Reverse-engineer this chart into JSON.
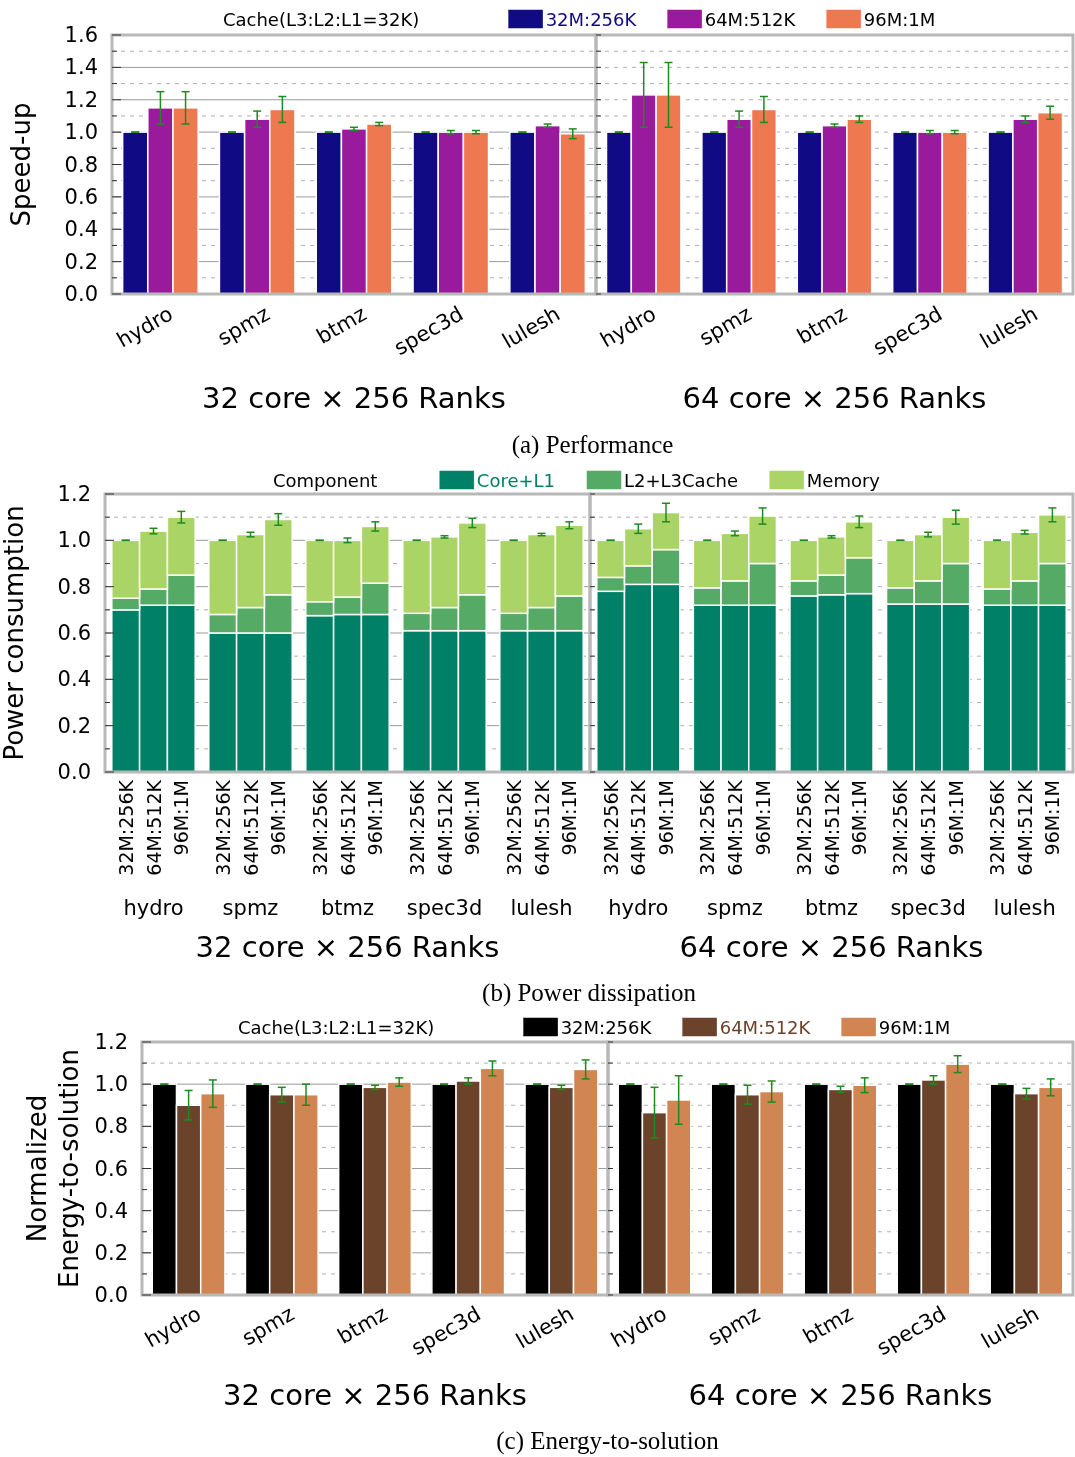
{
  "chart_data": [
    {
      "type": "bar",
      "title": "(a) Performance",
      "ylabel": "Speed-up",
      "xlabel": "32 core × 256 Ranks",
      "legend_title": "Cache(L3:L2:L1=32K)",
      "legend": "top",
      "grid": "y",
      "categories": [
        "hydro",
        "spmz",
        "btmz",
        "spec3d",
        "lulesh"
      ],
      "ylim": [
        0,
        1.6
      ],
      "yticks": [
        {
          "value": 0,
          "label": "0.0"
        },
        {
          "value": 0.1,
          "label": null
        },
        {
          "value": 0.2,
          "label": "0.2"
        },
        {
          "value": 0.3,
          "label": null
        },
        {
          "value": 0.4,
          "label": "0.4"
        },
        {
          "value": 0.5,
          "label": null
        },
        {
          "value": 0.6,
          "label": "0.6"
        },
        {
          "value": 0.7,
          "label": null
        },
        {
          "value": 0.8,
          "label": "0.8"
        },
        {
          "value": 0.9,
          "label": null
        },
        {
          "value": 1,
          "label": "1.0"
        },
        {
          "value": 1.1,
          "label": null
        },
        {
          "value": 1.2,
          "label": "1.2"
        },
        {
          "value": 1.3,
          "label": null
        },
        {
          "value": 1.4,
          "label": "1.4"
        },
        {
          "value": 1.5,
          "label": null
        },
        {
          "value": 1.6,
          "label": "1.6"
        }
      ],
      "series": [
        {
          "name": "32M:256K",
          "color": "#100a84",
          "values": [
            1,
            1,
            1,
            1,
            1
          ],
          "errors": [
            0,
            0,
            0,
            0,
            0
          ]
        },
        {
          "name": "64M:512K",
          "color": "#9a1a9e",
          "values": [
            1.15,
            1.08,
            1.02,
            1,
            1.04
          ],
          "errors": [
            0.1,
            0.05,
            0.01,
            0.01,
            0.01
          ]
        },
        {
          "name": "96M:1M",
          "color": "#ee7850",
          "values": [
            1.15,
            1.14,
            1.05,
            1,
            0.99
          ],
          "errors": [
            0.1,
            0.08,
            0.01,
            0.01,
            0.03
          ]
        }
      ]
    },
    {
      "type": "bar",
      "xlabel": "64 core × 256 Ranks",
      "grid": "y",
      "tick_labels": "x",
      "categories": [
        "hydro",
        "spmz",
        "btmz",
        "spec3d",
        "lulesh"
      ],
      "ylim": [
        0,
        1.6
      ],
      "yticks": [
        {
          "value": 0,
          "label": null
        },
        {
          "value": 0.1,
          "label": null
        },
        {
          "value": 0.2,
          "label": null
        },
        {
          "value": 0.3,
          "label": null
        },
        {
          "value": 0.4,
          "label": null
        },
        {
          "value": 0.5,
          "label": null
        },
        {
          "value": 0.6,
          "label": null
        },
        {
          "value": 0.7,
          "label": null
        },
        {
          "value": 0.8,
          "label": null
        },
        {
          "value": 0.9,
          "label": null
        },
        {
          "value": 1,
          "label": null
        },
        {
          "value": 1.1,
          "label": null
        },
        {
          "value": 1.2,
          "label": null
        },
        {
          "value": 1.3,
          "label": null
        },
        {
          "value": 1.4,
          "label": null
        },
        {
          "value": 1.5,
          "label": null
        },
        {
          "value": 1.6,
          "label": null
        }
      ],
      "series": [
        {
          "color": "#100a84",
          "values": [
            1,
            1,
            1,
            1,
            1
          ],
          "errors": [
            0,
            0,
            0,
            0,
            0
          ]
        },
        {
          "color": "#9a1a9e",
          "values": [
            1.23,
            1.08,
            1.04,
            1,
            1.08
          ],
          "errors": [
            0.2,
            0.05,
            0.01,
            0.01,
            0.02
          ]
        },
        {
          "color": "#ee7850",
          "values": [
            1.23,
            1.14,
            1.08,
            1,
            1.12
          ],
          "errors": [
            0.2,
            0.08,
            0.02,
            0.01,
            0.04
          ]
        }
      ]
    },
    {
      "type": "bar",
      "stacked": true,
      "title": "(b) Power dissipation",
      "ylabel": "Power consumption",
      "xlabel": "32 core × 256 Ranks",
      "legend_title": "Component",
      "legend": "top",
      "grid": "y",
      "annotations": [
        "hydro",
        "spmz",
        "btmz",
        "spec3d",
        "lulesh"
      ],
      "categories": [
        "32M:256K",
        "64M:512K",
        "96M:1M",
        "32M:256K",
        "64M:512K",
        "96M:1M",
        "32M:256K",
        "64M:512K",
        "96M:1M",
        "32M:256K",
        "64M:512K",
        "96M:1M",
        "32M:256K",
        "64M:512K",
        "96M:1M"
      ],
      "ylim": [
        0,
        1.2
      ],
      "yticks": [
        {
          "value": 0,
          "label": "0.0"
        },
        {
          "value": 0.1,
          "label": null
        },
        {
          "value": 0.2,
          "label": "0.2"
        },
        {
          "value": 0.3,
          "label": null
        },
        {
          "value": 0.4,
          "label": "0.4"
        },
        {
          "value": 0.5,
          "label": null
        },
        {
          "value": 0.6,
          "label": "0.6"
        },
        {
          "value": 0.7,
          "label": null
        },
        {
          "value": 0.8,
          "label": "0.8"
        },
        {
          "value": 0.9,
          "label": null
        },
        {
          "value": 1,
          "label": "1.0"
        },
        {
          "value": 1.1,
          "label": null
        },
        {
          "value": 1.2,
          "label": "1.2"
        }
      ],
      "series": [
        {
          "name": "Core+L1",
          "color": "#008066",
          "values": [
            0.7,
            0.72,
            0.72,
            0.6,
            0.6,
            0.6,
            0.675,
            0.68,
            0.68,
            0.61,
            0.61,
            0.61,
            0.61,
            0.61,
            0.61
          ]
        },
        {
          "name": "L2+L3Cache",
          "color": "#55aa66",
          "values": [
            0.05,
            0.07,
            0.13,
            0.08,
            0.11,
            0.165,
            0.06,
            0.075,
            0.135,
            0.075,
            0.1,
            0.155,
            0.075,
            0.1,
            0.15
          ]
        },
        {
          "name": "Memory",
          "color": "#aad466",
          "values": [
            0.25,
            0.25,
            0.25,
            0.32,
            0.315,
            0.325,
            0.265,
            0.245,
            0.245,
            0.315,
            0.305,
            0.31,
            0.315,
            0.315,
            0.305
          ],
          "errors": [
            0,
            0.012,
            0.025,
            0,
            0.01,
            0.025,
            0,
            0.01,
            0.02,
            0,
            0.005,
            0.02,
            0,
            0.005,
            0.015
          ]
        }
      ]
    },
    {
      "type": "bar",
      "stacked": true,
      "xlabel": "64 core × 256 Ranks",
      "grid": "y",
      "tick_labels": "x",
      "annotations": [
        "hydro",
        "spmz",
        "btmz",
        "spec3d",
        "lulesh"
      ],
      "categories": [
        "32M:256K",
        "64M:512K",
        "96M:1M",
        "32M:256K",
        "64M:512K",
        "96M:1M",
        "32M:256K",
        "64M:512K",
        "96M:1M",
        "32M:256K",
        "64M:512K",
        "96M:1M",
        "32M:256K",
        "64M:512K",
        "96M:1M"
      ],
      "ylim": [
        0,
        1.2
      ],
      "yticks": [
        {
          "value": 0,
          "label": null
        },
        {
          "value": 0.1,
          "label": null
        },
        {
          "value": 0.2,
          "label": null
        },
        {
          "value": 0.3,
          "label": null
        },
        {
          "value": 0.4,
          "label": null
        },
        {
          "value": 0.5,
          "label": null
        },
        {
          "value": 0.6,
          "label": null
        },
        {
          "value": 0.7,
          "label": null
        },
        {
          "value": 0.8,
          "label": null
        },
        {
          "value": 0.9,
          "label": null
        },
        {
          "value": 1,
          "label": null
        },
        {
          "value": 1.1,
          "label": null
        },
        {
          "value": 1.2,
          "label": null
        }
      ],
      "series": [
        {
          "color": "#008066",
          "values": [
            0.78,
            0.81,
            0.81,
            0.72,
            0.72,
            0.72,
            0.76,
            0.765,
            0.77,
            0.725,
            0.725,
            0.725,
            0.72,
            0.72,
            0.72
          ]
        },
        {
          "color": "#55aa66",
          "values": [
            0.06,
            0.08,
            0.15,
            0.075,
            0.105,
            0.18,
            0.065,
            0.085,
            0.155,
            0.07,
            0.1,
            0.175,
            0.07,
            0.105,
            0.18
          ]
        },
        {
          "color": "#aad466",
          "values": [
            0.16,
            0.16,
            0.16,
            0.205,
            0.205,
            0.205,
            0.175,
            0.165,
            0.155,
            0.205,
            0.2,
            0.2,
            0.21,
            0.21,
            0.21
          ],
          "errors": [
            0,
            0.02,
            0.04,
            0,
            0.01,
            0.035,
            0,
            0.005,
            0.025,
            0,
            0.01,
            0.03,
            0,
            0.008,
            0.03
          ]
        }
      ]
    },
    {
      "type": "bar",
      "title": "(c) Energy-to-solution",
      "ylabel": "Normalized Energy-to-solution",
      "xlabel": "32 core × 256 Ranks",
      "legend_title": "Cache(L3:L2:L1=32K)",
      "legend": "top",
      "grid": "y",
      "categories": [
        "hydro",
        "spmz",
        "btmz",
        "spec3d",
        "lulesh"
      ],
      "ylim": [
        0,
        1.2
      ],
      "yticks": [
        {
          "value": 0,
          "label": "0.0"
        },
        {
          "value": 0.1,
          "label": null
        },
        {
          "value": 0.2,
          "label": "0.2"
        },
        {
          "value": 0.3,
          "label": null
        },
        {
          "value": 0.4,
          "label": "0.4"
        },
        {
          "value": 0.5,
          "label": null
        },
        {
          "value": 0.6,
          "label": "0.6"
        },
        {
          "value": 0.7,
          "label": null
        },
        {
          "value": 0.8,
          "label": "0.8"
        },
        {
          "value": 0.9,
          "label": null
        },
        {
          "value": 1,
          "label": "1.0"
        },
        {
          "value": 1.1,
          "label": null
        },
        {
          "value": 1.2,
          "label": "1.2"
        }
      ],
      "series": [
        {
          "name": "32M:256K",
          "color": "#000000",
          "values": [
            1,
            1,
            1,
            1,
            1
          ],
          "errors": [
            0,
            0,
            0,
            0,
            0
          ]
        },
        {
          "name": "64M:512K",
          "color": "#6b432b",
          "values": [
            0.9,
            0.95,
            0.985,
            1.015,
            0.985
          ],
          "errors": [
            0.07,
            0.035,
            0.01,
            0.015,
            0.01
          ]
        },
        {
          "name": "96M:1M",
          "color": "#d08552",
          "values": [
            0.955,
            0.95,
            1.01,
            1.075,
            1.07
          ],
          "errors": [
            0.065,
            0.05,
            0.02,
            0.035,
            0.045
          ]
        }
      ]
    },
    {
      "type": "bar",
      "xlabel": "64 core × 256 Ranks",
      "grid": "y",
      "tick_labels": "x",
      "categories": [
        "hydro",
        "spmz",
        "btmz",
        "spec3d",
        "lulesh"
      ],
      "ylim": [
        0,
        1.2
      ],
      "yticks": [
        {
          "value": 0,
          "label": null
        },
        {
          "value": 0.1,
          "label": null
        },
        {
          "value": 0.2,
          "label": null
        },
        {
          "value": 0.3,
          "label": null
        },
        {
          "value": 0.4,
          "label": null
        },
        {
          "value": 0.5,
          "label": null
        },
        {
          "value": 0.6,
          "label": null
        },
        {
          "value": 0.7,
          "label": null
        },
        {
          "value": 0.8,
          "label": null
        },
        {
          "value": 0.9,
          "label": null
        },
        {
          "value": 1,
          "label": null
        },
        {
          "value": 1.1,
          "label": null
        },
        {
          "value": 1.2,
          "label": null
        }
      ],
      "series": [
        {
          "color": "#000000",
          "values": [
            1,
            1,
            1,
            1,
            1
          ],
          "errors": [
            0,
            0,
            0,
            0,
            0
          ]
        },
        {
          "color": "#6b432b",
          "values": [
            0.865,
            0.95,
            0.975,
            1.02,
            0.955
          ],
          "errors": [
            0.12,
            0.045,
            0.015,
            0.02,
            0.025
          ]
        },
        {
          "color": "#d08552",
          "values": [
            0.925,
            0.965,
            0.995,
            1.095,
            0.985
          ],
          "errors": [
            0.115,
            0.05,
            0.035,
            0.04,
            0.04
          ]
        }
      ]
    }
  ]
}
